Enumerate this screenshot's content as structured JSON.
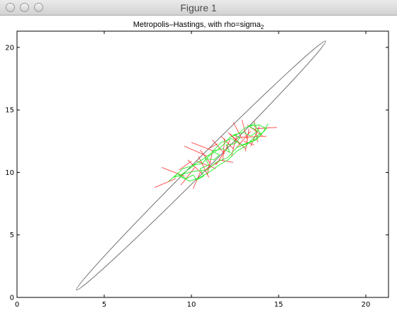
{
  "window": {
    "title": "Figure 1"
  },
  "chart_data": {
    "type": "line",
    "title": "Metropolis–Hastings, with rho=sigma",
    "title_subscript": "2",
    "xlim": [
      0,
      21.3
    ],
    "ylim": [
      0,
      21.3
    ],
    "xticks": [
      "0",
      "5",
      "10",
      "15",
      "20"
    ],
    "xtick_values": [
      0,
      5,
      10,
      15,
      20
    ],
    "yticks": [
      "0",
      "5",
      "10",
      "15",
      "20"
    ],
    "ytick_values": [
      0,
      5,
      10,
      15,
      20
    ],
    "grid": false,
    "colors": {
      "ellipse": "#707070",
      "chain": "#22ee22",
      "proposals": "#ff3030"
    },
    "ellipse": {
      "center": [
        10.55,
        10.55
      ],
      "angle_deg": 45,
      "semi_major": 10.1,
      "semi_minor": 0.52
    },
    "chain": [
      [
        8.7,
        9.3
      ],
      [
        9.2,
        9.9
      ],
      [
        9.7,
        9.5
      ],
      [
        10.1,
        9.8
      ],
      [
        10.3,
        9.4
      ],
      [
        10.7,
        9.7
      ],
      [
        10.5,
        10.3
      ],
      [
        11.0,
        10.6
      ],
      [
        10.8,
        11.1
      ],
      [
        11.3,
        11.0
      ],
      [
        11.6,
        11.4
      ],
      [
        11.2,
        11.7
      ],
      [
        11.8,
        11.9
      ],
      [
        12.2,
        11.6
      ],
      [
        12.0,
        12.2
      ],
      [
        12.5,
        12.3
      ],
      [
        12.8,
        12.8
      ],
      [
        12.4,
        13.0
      ],
      [
        13.0,
        13.2
      ],
      [
        13.4,
        12.9
      ],
      [
        13.8,
        13.3
      ],
      [
        13.3,
        13.7
      ],
      [
        13.9,
        13.8
      ],
      [
        14.3,
        13.5
      ],
      [
        13.7,
        12.6
      ],
      [
        13.2,
        12.3
      ],
      [
        12.6,
        12.0
      ],
      [
        12.1,
        11.2
      ],
      [
        11.4,
        10.8
      ],
      [
        10.9,
        10.2
      ],
      [
        10.2,
        10.1
      ],
      [
        9.6,
        9.9
      ],
      [
        9.0,
        9.6
      ],
      [
        9.5,
        10.3
      ],
      [
        10.0,
        10.5
      ],
      [
        10.6,
        11.0
      ],
      [
        11.1,
        11.5
      ],
      [
        11.7,
        12.4
      ],
      [
        12.3,
        12.7
      ],
      [
        12.9,
        12.2
      ],
      [
        13.5,
        12.5
      ],
      [
        14.0,
        13.0
      ],
      [
        13.6,
        13.9
      ],
      [
        13.0,
        13.5
      ],
      [
        12.7,
        13.1
      ],
      [
        12.2,
        12.8
      ],
      [
        11.9,
        12.3
      ],
      [
        11.5,
        11.8
      ],
      [
        11.0,
        11.3
      ],
      [
        10.6,
        10.7
      ],
      [
        10.2,
        10.6
      ],
      [
        9.8,
        10.2
      ],
      [
        9.3,
        9.7
      ],
      [
        9.9,
        9.3
      ],
      [
        10.5,
        9.6
      ],
      [
        11.1,
        10.1
      ],
      [
        11.6,
        10.6
      ],
      [
        12.1,
        11.0
      ],
      [
        12.6,
        11.7
      ],
      [
        13.1,
        12.1
      ],
      [
        13.6,
        12.8
      ],
      [
        14.1,
        13.2
      ],
      [
        14.4,
        13.9
      ]
    ],
    "proposals": [
      [
        [
          7.9,
          8.8
        ],
        [
          9.1,
          9.5
        ]
      ],
      [
        [
          8.3,
          10.4
        ],
        [
          9.6,
          9.7
        ]
      ],
      [
        [
          9.4,
          9.0
        ],
        [
          10.2,
          10.4
        ]
      ],
      [
        [
          9.8,
          11.0
        ],
        [
          10.6,
          9.9
        ]
      ],
      [
        [
          10.1,
          8.7
        ],
        [
          10.5,
          10.0
        ]
      ],
      [
        [
          10.3,
          10.9
        ],
        [
          11.4,
          10.3
        ]
      ],
      [
        [
          10.5,
          11.8
        ],
        [
          11.1,
          10.7
        ]
      ],
      [
        [
          10.9,
          9.8
        ],
        [
          11.2,
          11.6
        ]
      ],
      [
        [
          9.6,
          12.1
        ],
        [
          10.9,
          11.3
        ]
      ],
      [
        [
          10.0,
          12.4
        ],
        [
          11.3,
          11.7
        ]
      ],
      [
        [
          11.2,
          12.6
        ],
        [
          11.9,
          11.5
        ]
      ],
      [
        [
          11.4,
          10.6
        ],
        [
          12.1,
          12.1
        ]
      ],
      [
        [
          11.7,
          12.9
        ],
        [
          12.4,
          11.9
        ]
      ],
      [
        [
          11.8,
          10.9
        ],
        [
          11.9,
          12.7
        ]
      ],
      [
        [
          12.1,
          13.2
        ],
        [
          12.8,
          12.2
        ]
      ],
      [
        [
          12.3,
          11.3
        ],
        [
          12.6,
          13.0
        ]
      ],
      [
        [
          12.4,
          14.0
        ],
        [
          12.9,
          12.7
        ]
      ],
      [
        [
          12.6,
          12.0
        ],
        [
          13.4,
          13.3
        ]
      ],
      [
        [
          12.9,
          14.2
        ],
        [
          13.2,
          12.6
        ]
      ],
      [
        [
          13.1,
          11.7
        ],
        [
          13.3,
          13.5
        ]
      ],
      [
        [
          13.2,
          13.8
        ],
        [
          14.1,
          12.9
        ]
      ],
      [
        [
          13.4,
          12.1
        ],
        [
          13.9,
          13.7
        ]
      ],
      [
        [
          13.6,
          14.1
        ],
        [
          13.8,
          12.4
        ]
      ],
      [
        [
          13.7,
          13.5
        ],
        [
          14.9,
          13.6
        ]
      ],
      [
        [
          12.7,
          12.8
        ],
        [
          14.3,
          12.9
        ]
      ],
      [
        [
          12.2,
          13.1
        ],
        [
          13.1,
          11.9
        ]
      ],
      [
        [
          11.6,
          11.0
        ],
        [
          12.4,
          10.8
        ]
      ],
      [
        [
          10.8,
          10.2
        ],
        [
          11.6,
          10.9
        ]
      ],
      [
        [
          10.4,
          11.3
        ],
        [
          11.0,
          9.6
        ]
      ],
      [
        [
          9.3,
          10.2
        ],
        [
          10.0,
          10.9
        ]
      ],
      [
        [
          12.0,
          11.9
        ],
        [
          12.2,
          12.6
        ]
      ],
      [
        [
          13.0,
          12.5
        ],
        [
          13.6,
          12.2
        ]
      ],
      [
        [
          11.0,
          11.9
        ],
        [
          11.5,
          12.3
        ]
      ]
    ]
  }
}
